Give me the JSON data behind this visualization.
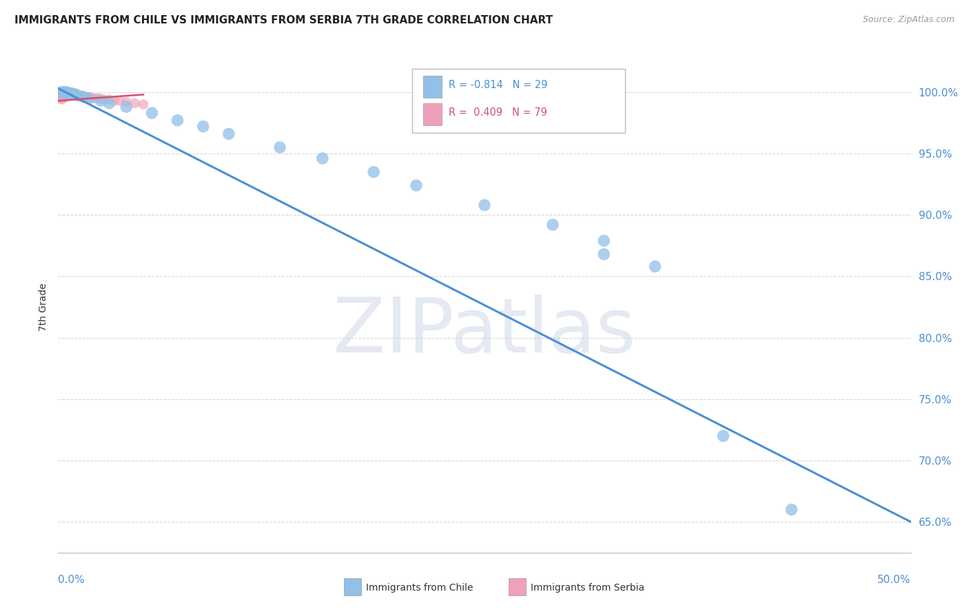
{
  "title": "IMMIGRANTS FROM CHILE VS IMMIGRANTS FROM SERBIA 7TH GRADE CORRELATION CHART",
  "source": "Source: ZipAtlas.com",
  "ylabel": "7th Grade",
  "xmin": 0.0,
  "xmax": 0.5,
  "ymin": 0.625,
  "ymax": 1.025,
  "chile_R": -0.814,
  "chile_N": 29,
  "serbia_R": 0.409,
  "serbia_N": 79,
  "chile_color": "#92c0e8",
  "serbia_color": "#f0a0b8",
  "chile_line_color": "#4a8fd4",
  "serbia_line_color": "#d05070",
  "watermark": "ZIPatlas",
  "background_color": "#ffffff",
  "grid_color": "#cccccc",
  "ytick_values": [
    0.65,
    0.7,
    0.75,
    0.8,
    0.85,
    0.9,
    0.95,
    1.0
  ],
  "chile_scatter_x": [
    0.002,
    0.003,
    0.004,
    0.005,
    0.006,
    0.007,
    0.008,
    0.01,
    0.012,
    0.015,
    0.018,
    0.025,
    0.03,
    0.04,
    0.055,
    0.07,
    0.085,
    0.1,
    0.13,
    0.155,
    0.185,
    0.21,
    0.25,
    0.29,
    0.32,
    0.32,
    0.35,
    0.39,
    0.43
  ],
  "chile_scatter_y": [
    1.0,
    1.0,
    1.0,
    1.0,
    0.999,
    0.999,
    0.999,
    0.998,
    0.997,
    0.996,
    0.995,
    0.993,
    0.991,
    0.988,
    0.983,
    0.977,
    0.972,
    0.966,
    0.955,
    0.946,
    0.935,
    0.924,
    0.908,
    0.892,
    0.879,
    0.868,
    0.858,
    0.72,
    0.66
  ],
  "serbia_scatter_x": [
    0.001,
    0.001,
    0.001,
    0.001,
    0.001,
    0.001,
    0.001,
    0.001,
    0.001,
    0.001,
    0.001,
    0.001,
    0.001,
    0.001,
    0.001,
    0.001,
    0.002,
    0.002,
    0.002,
    0.002,
    0.002,
    0.002,
    0.002,
    0.002,
    0.002,
    0.002,
    0.002,
    0.002,
    0.003,
    0.003,
    0.003,
    0.003,
    0.003,
    0.003,
    0.003,
    0.003,
    0.003,
    0.004,
    0.004,
    0.004,
    0.004,
    0.004,
    0.004,
    0.005,
    0.005,
    0.005,
    0.005,
    0.005,
    0.006,
    0.006,
    0.006,
    0.006,
    0.007,
    0.007,
    0.007,
    0.008,
    0.008,
    0.008,
    0.009,
    0.009,
    0.01,
    0.01,
    0.011,
    0.012,
    0.013,
    0.014,
    0.015,
    0.016,
    0.018,
    0.02,
    0.022,
    0.024,
    0.027,
    0.03,
    0.033,
    0.036,
    0.04,
    0.045,
    0.05
  ],
  "serbia_scatter_y": [
    0.999,
    0.999,
    0.999,
    0.999,
    0.999,
    0.999,
    0.999,
    0.998,
    0.998,
    0.998,
    0.998,
    0.997,
    0.997,
    0.997,
    0.997,
    0.996,
    0.999,
    0.999,
    0.999,
    0.998,
    0.998,
    0.998,
    0.997,
    0.997,
    0.996,
    0.996,
    0.995,
    0.994,
    0.999,
    0.999,
    0.998,
    0.998,
    0.997,
    0.997,
    0.996,
    0.996,
    0.995,
    0.999,
    0.999,
    0.998,
    0.998,
    0.997,
    0.996,
    0.999,
    0.999,
    0.998,
    0.997,
    0.996,
    0.999,
    0.998,
    0.998,
    0.997,
    0.999,
    0.998,
    0.997,
    0.999,
    0.998,
    0.997,
    0.999,
    0.998,
    0.999,
    0.998,
    0.998,
    0.997,
    0.997,
    0.997,
    0.996,
    0.996,
    0.996,
    0.995,
    0.995,
    0.995,
    0.994,
    0.994,
    0.993,
    0.993,
    0.992,
    0.991,
    0.99
  ],
  "chile_line_x0": 0.0,
  "chile_line_x1": 0.5,
  "chile_line_y0": 1.003,
  "chile_line_y1": 0.65,
  "serbia_line_x0": 0.0,
  "serbia_line_x1": 0.05,
  "serbia_line_y0": 0.993,
  "serbia_line_y1": 0.998
}
